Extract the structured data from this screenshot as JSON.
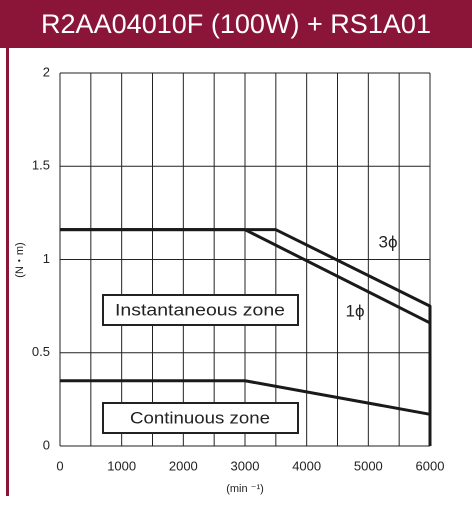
{
  "chart_data": {
    "type": "line",
    "title": "R2AA04010F (100W) + RS1A01",
    "x_label": "(min ⁻¹)",
    "y_label": "(N・m)",
    "xlim": [
      0,
      6000
    ],
    "xticks": [
      0,
      1000,
      2000,
      3000,
      4000,
      5000,
      6000
    ],
    "xminor_ticks": [
      500,
      1500,
      2500,
      3500,
      4500,
      5500
    ],
    "ylim": [
      0,
      2
    ],
    "yticks": [
      0,
      0.5,
      1,
      1.5,
      2
    ],
    "grid": true,
    "series": [
      {
        "name": "3ϕ",
        "color": "#1a1a1a",
        "x": [
          0,
          3500,
          6000,
          6000
        ],
        "values": [
          1.16,
          1.16,
          0.75,
          0
        ]
      },
      {
        "name": "1ϕ",
        "color": "#1a1a1a",
        "x": [
          0,
          3000,
          6000
        ],
        "values": [
          1.16,
          1.16,
          0.66
        ]
      },
      {
        "name": "Continuous zone",
        "color": "#1a1a1a",
        "x": [
          0,
          3000,
          6000,
          6000
        ],
        "values": [
          0.35,
          0.35,
          0.17,
          0
        ]
      }
    ],
    "annotations": [
      "Instantaneous zone",
      "Continuous zone"
    ]
  }
}
